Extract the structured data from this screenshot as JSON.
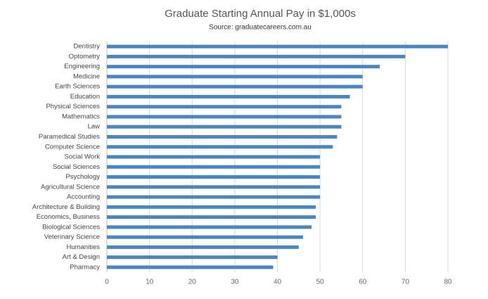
{
  "chart_data": {
    "type": "barh",
    "title": "Graduate Starting Annual Pay in $1,000s",
    "subtitle": "Source: graduatecareers.com.au",
    "categories": [
      "Dentistry",
      "Optometry",
      "Engineering",
      "Medicine",
      "Earth Sciences",
      "Education",
      "Physical Sciences",
      "Mathematics",
      "Law",
      "Paramedical Studies",
      "Computer Science",
      "Social Work",
      "Social Sciences",
      "Psychology",
      "Agricultural Science",
      "Accounting",
      "Architecture & Building",
      "Economics, Business",
      "Biological Sciences",
      "Veterinary Science",
      "Humanities",
      "Art & Design",
      "Pharmacy"
    ],
    "values": [
      80,
      70,
      64,
      60,
      60,
      57,
      55,
      55,
      55,
      54,
      53,
      50,
      50,
      50,
      50,
      50,
      49,
      49,
      48,
      46,
      45,
      40,
      39
    ],
    "color": "#4a86c2",
    "xlim": [
      0,
      80
    ],
    "xticks": [
      0,
      10,
      20,
      30,
      40,
      50,
      60,
      70,
      80
    ],
    "grid": true
  }
}
